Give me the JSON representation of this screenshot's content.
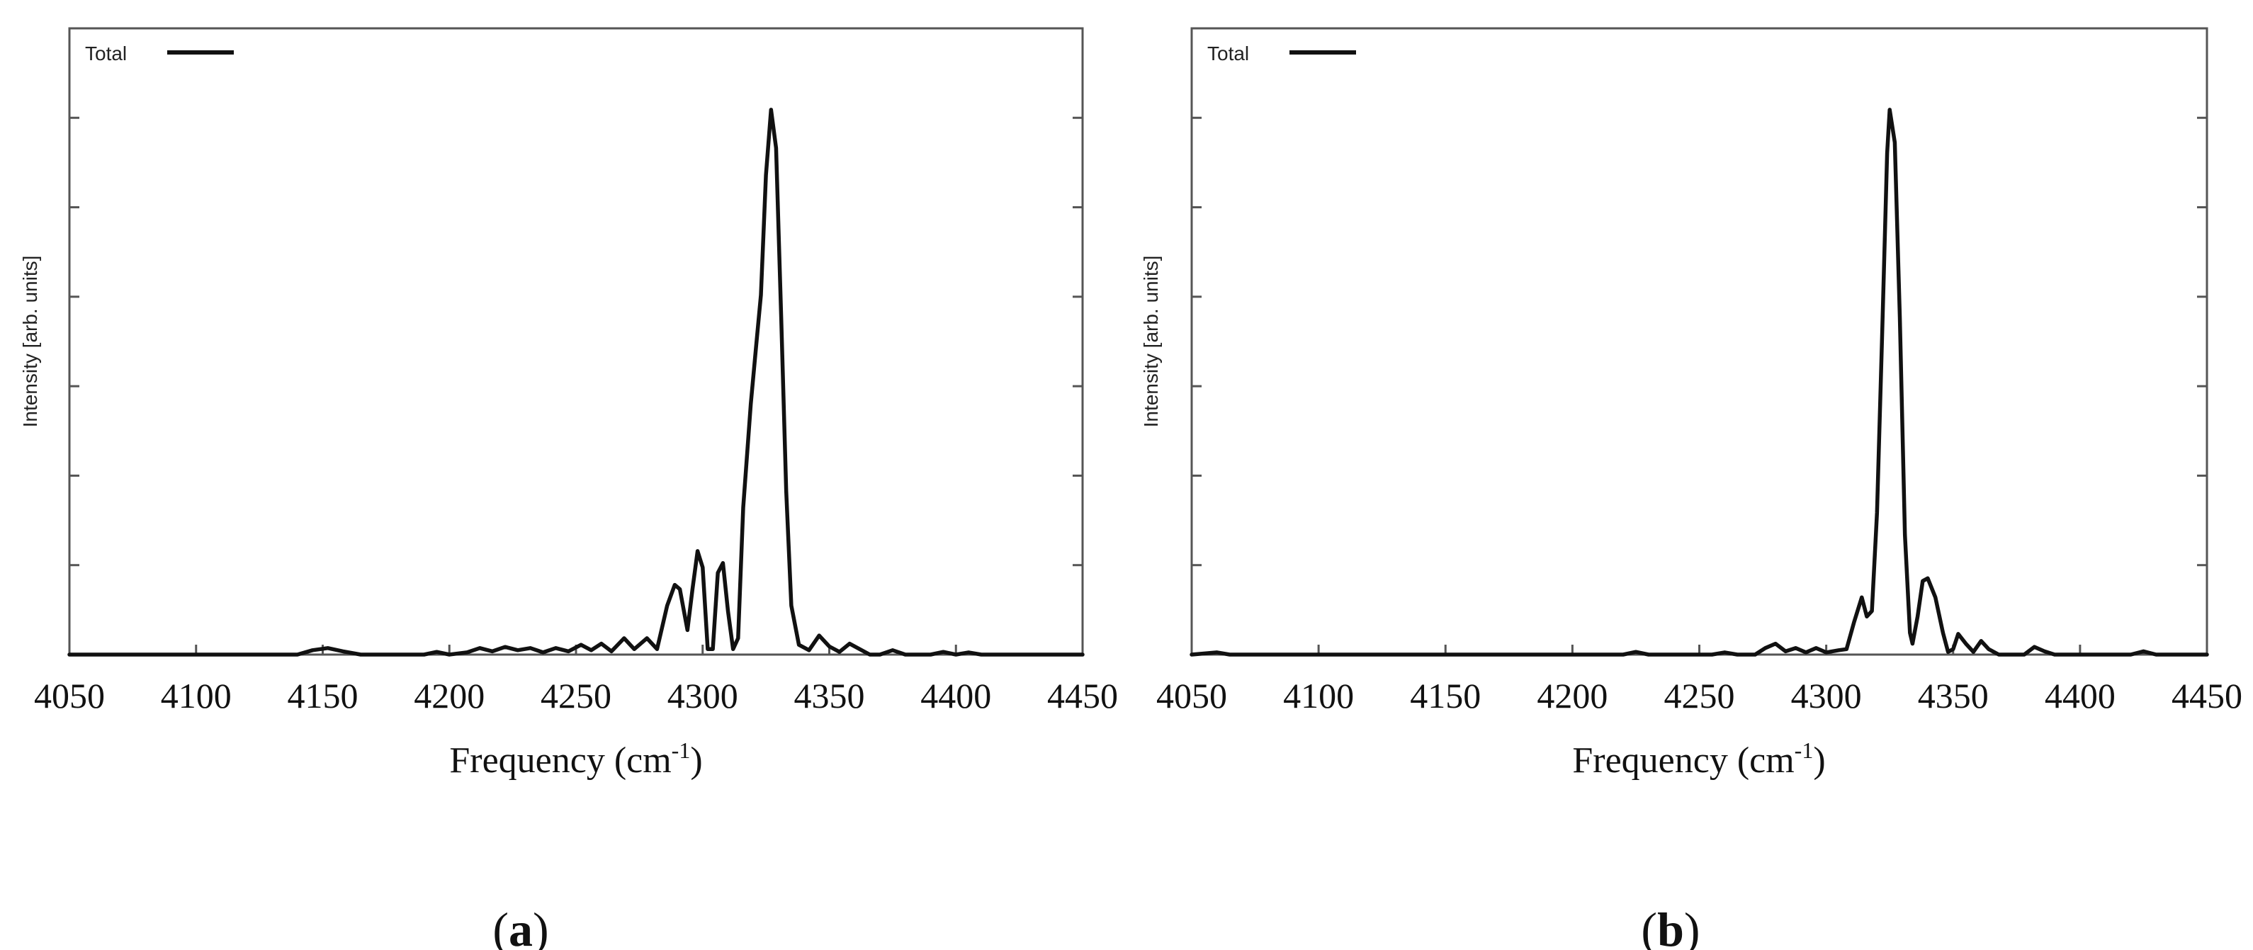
{
  "chart_data": [
    {
      "type": "line",
      "panel_label": "a",
      "xlabel": "Frequency (cm",
      "xlabel_superscript": "-1",
      "xlabel_suffix": ")",
      "ylabel": "Intensity [arb. units]",
      "xlim": [
        4050,
        4450
      ],
      "ylim": [
        0,
        1.0
      ],
      "x_ticks": [
        4050,
        4100,
        4150,
        4200,
        4250,
        4300,
        4350,
        4400,
        4450
      ],
      "y_tick_labels_shown": false,
      "legend": {
        "placement": "top-left",
        "entries": [
          "Total"
        ]
      },
      "series": [
        {
          "name": "Total",
          "color": "#111111",
          "points": [
            [
              4050,
              0.0
            ],
            [
              4100,
              0.0
            ],
            [
              4140,
              0.0
            ],
            [
              4146,
              0.008
            ],
            [
              4152,
              0.012
            ],
            [
              4158,
              0.006
            ],
            [
              4165,
              0.0
            ],
            [
              4190,
              0.0
            ],
            [
              4195,
              0.005
            ],
            [
              4200,
              0.0
            ],
            [
              4207,
              0.004
            ],
            [
              4212,
              0.012
            ],
            [
              4217,
              0.006
            ],
            [
              4222,
              0.014
            ],
            [
              4227,
              0.008
            ],
            [
              4232,
              0.012
            ],
            [
              4237,
              0.004
            ],
            [
              4242,
              0.012
            ],
            [
              4247,
              0.006
            ],
            [
              4252,
              0.018
            ],
            [
              4256,
              0.008
            ],
            [
              4260,
              0.02
            ],
            [
              4264,
              0.006
            ],
            [
              4269,
              0.03
            ],
            [
              4273,
              0.01
            ],
            [
              4278,
              0.03
            ],
            [
              4282,
              0.01
            ],
            [
              4286,
              0.09
            ],
            [
              4289,
              0.128
            ],
            [
              4291,
              0.12
            ],
            [
              4294,
              0.045
            ],
            [
              4296,
              0.12
            ],
            [
              4298,
              0.19
            ],
            [
              4300,
              0.16
            ],
            [
              4302,
              0.01
            ],
            [
              4304,
              0.01
            ],
            [
              4306,
              0.15
            ],
            [
              4308,
              0.168
            ],
            [
              4310,
              0.08
            ],
            [
              4312,
              0.01
            ],
            [
              4314,
              0.03
            ],
            [
              4316,
              0.27
            ],
            [
              4319,
              0.46
            ],
            [
              4321,
              0.56
            ],
            [
              4323,
              0.66
            ],
            [
              4325,
              0.88
            ],
            [
              4327,
              1.0
            ],
            [
              4329,
              0.93
            ],
            [
              4331,
              0.62
            ],
            [
              4333,
              0.3
            ],
            [
              4335,
              0.09
            ],
            [
              4338,
              0.018
            ],
            [
              4342,
              0.008
            ],
            [
              4346,
              0.035
            ],
            [
              4350,
              0.015
            ],
            [
              4354,
              0.005
            ],
            [
              4358,
              0.02
            ],
            [
              4362,
              0.01
            ],
            [
              4366,
              0.0
            ],
            [
              4370,
              0.0
            ],
            [
              4375,
              0.008
            ],
            [
              4380,
              0.0
            ],
            [
              4390,
              0.0
            ],
            [
              4395,
              0.005
            ],
            [
              4400,
              0.0
            ],
            [
              4405,
              0.004
            ],
            [
              4410,
              0.0
            ],
            [
              4450,
              0.0
            ]
          ]
        }
      ]
    },
    {
      "type": "line",
      "panel_label": "b",
      "xlabel": "Frequency (cm",
      "xlabel_superscript": "-1",
      "xlabel_suffix": ")",
      "ylabel": "Intensity [arb. units]",
      "xlim": [
        4050,
        4450
      ],
      "ylim": [
        0,
        1.0
      ],
      "x_ticks": [
        4050,
        4100,
        4150,
        4200,
        4250,
        4300,
        4350,
        4400,
        4450
      ],
      "y_tick_labels_shown": false,
      "legend": {
        "placement": "top-left",
        "entries": [
          "Total"
        ]
      },
      "series": [
        {
          "name": "Total",
          "color": "#111111",
          "points": [
            [
              4050,
              0.0
            ],
            [
              4060,
              0.004
            ],
            [
              4065,
              0.0
            ],
            [
              4220,
              0.0
            ],
            [
              4225,
              0.005
            ],
            [
              4230,
              0.0
            ],
            [
              4255,
              0.0
            ],
            [
              4260,
              0.004
            ],
            [
              4265,
              0.0
            ],
            [
              4272,
              0.0
            ],
            [
              4276,
              0.012
            ],
            [
              4280,
              0.02
            ],
            [
              4284,
              0.006
            ],
            [
              4288,
              0.012
            ],
            [
              4292,
              0.004
            ],
            [
              4296,
              0.012
            ],
            [
              4300,
              0.004
            ],
            [
              4305,
              0.008
            ],
            [
              4308,
              0.01
            ],
            [
              4311,
              0.06
            ],
            [
              4314,
              0.105
            ],
            [
              4316,
              0.07
            ],
            [
              4318,
              0.08
            ],
            [
              4320,
              0.26
            ],
            [
              4322,
              0.58
            ],
            [
              4324,
              0.92
            ],
            [
              4325,
              1.0
            ],
            [
              4327,
              0.94
            ],
            [
              4329,
              0.62
            ],
            [
              4331,
              0.22
            ],
            [
              4333,
              0.04
            ],
            [
              4334,
              0.02
            ],
            [
              4336,
              0.07
            ],
            [
              4338,
              0.135
            ],
            [
              4340,
              0.14
            ],
            [
              4343,
              0.105
            ],
            [
              4346,
              0.04
            ],
            [
              4348,
              0.005
            ],
            [
              4350,
              0.01
            ],
            [
              4352,
              0.038
            ],
            [
              4355,
              0.02
            ],
            [
              4358,
              0.005
            ],
            [
              4361,
              0.025
            ],
            [
              4364,
              0.01
            ],
            [
              4368,
              0.0
            ],
            [
              4378,
              0.0
            ],
            [
              4382,
              0.014
            ],
            [
              4386,
              0.006
            ],
            [
              4390,
              0.0
            ],
            [
              4420,
              0.0
            ],
            [
              4425,
              0.006
            ],
            [
              4430,
              0.0
            ],
            [
              4450,
              0.0
            ]
          ]
        }
      ]
    }
  ]
}
